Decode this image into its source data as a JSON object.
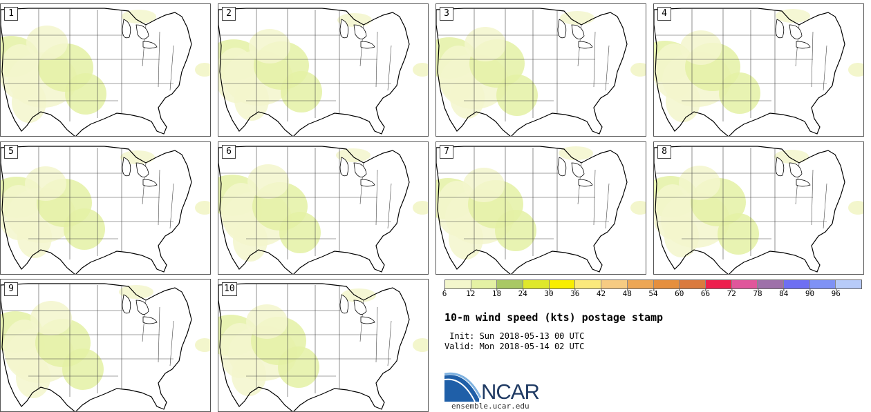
{
  "panels": [
    {
      "label": "1"
    },
    {
      "label": "2"
    },
    {
      "label": "3"
    },
    {
      "label": "4"
    },
    {
      "label": "5"
    },
    {
      "label": "6"
    },
    {
      "label": "7"
    },
    {
      "label": "8"
    },
    {
      "label": "9"
    },
    {
      "label": "10"
    }
  ],
  "colorbar": {
    "colors": [
      "#f3f6cc",
      "#e4f1a4",
      "#a9c864",
      "#dfe82b",
      "#f8ee00",
      "#fbe97c",
      "#f6cb82",
      "#eda654",
      "#e58f3e",
      "#da7a3e",
      "#ed1f4d",
      "#e0569b",
      "#9e70a9",
      "#6e6ff2",
      "#7f92f5",
      "#b7cbf9"
    ],
    "ticks": [
      "6",
      "12",
      "18",
      "24",
      "30",
      "36",
      "42",
      "48",
      "54",
      "60",
      "66",
      "72",
      "78",
      "84",
      "90",
      "96"
    ]
  },
  "title": "10-m wind speed (kts) postage stamp",
  "init": " Init: Sun 2018-05-13 00 UTC",
  "valid": "Valid: Mon 2018-05-14 02 UTC",
  "logo": {
    "name": "NCAR",
    "url": "ensemble.ucar.edu"
  }
}
